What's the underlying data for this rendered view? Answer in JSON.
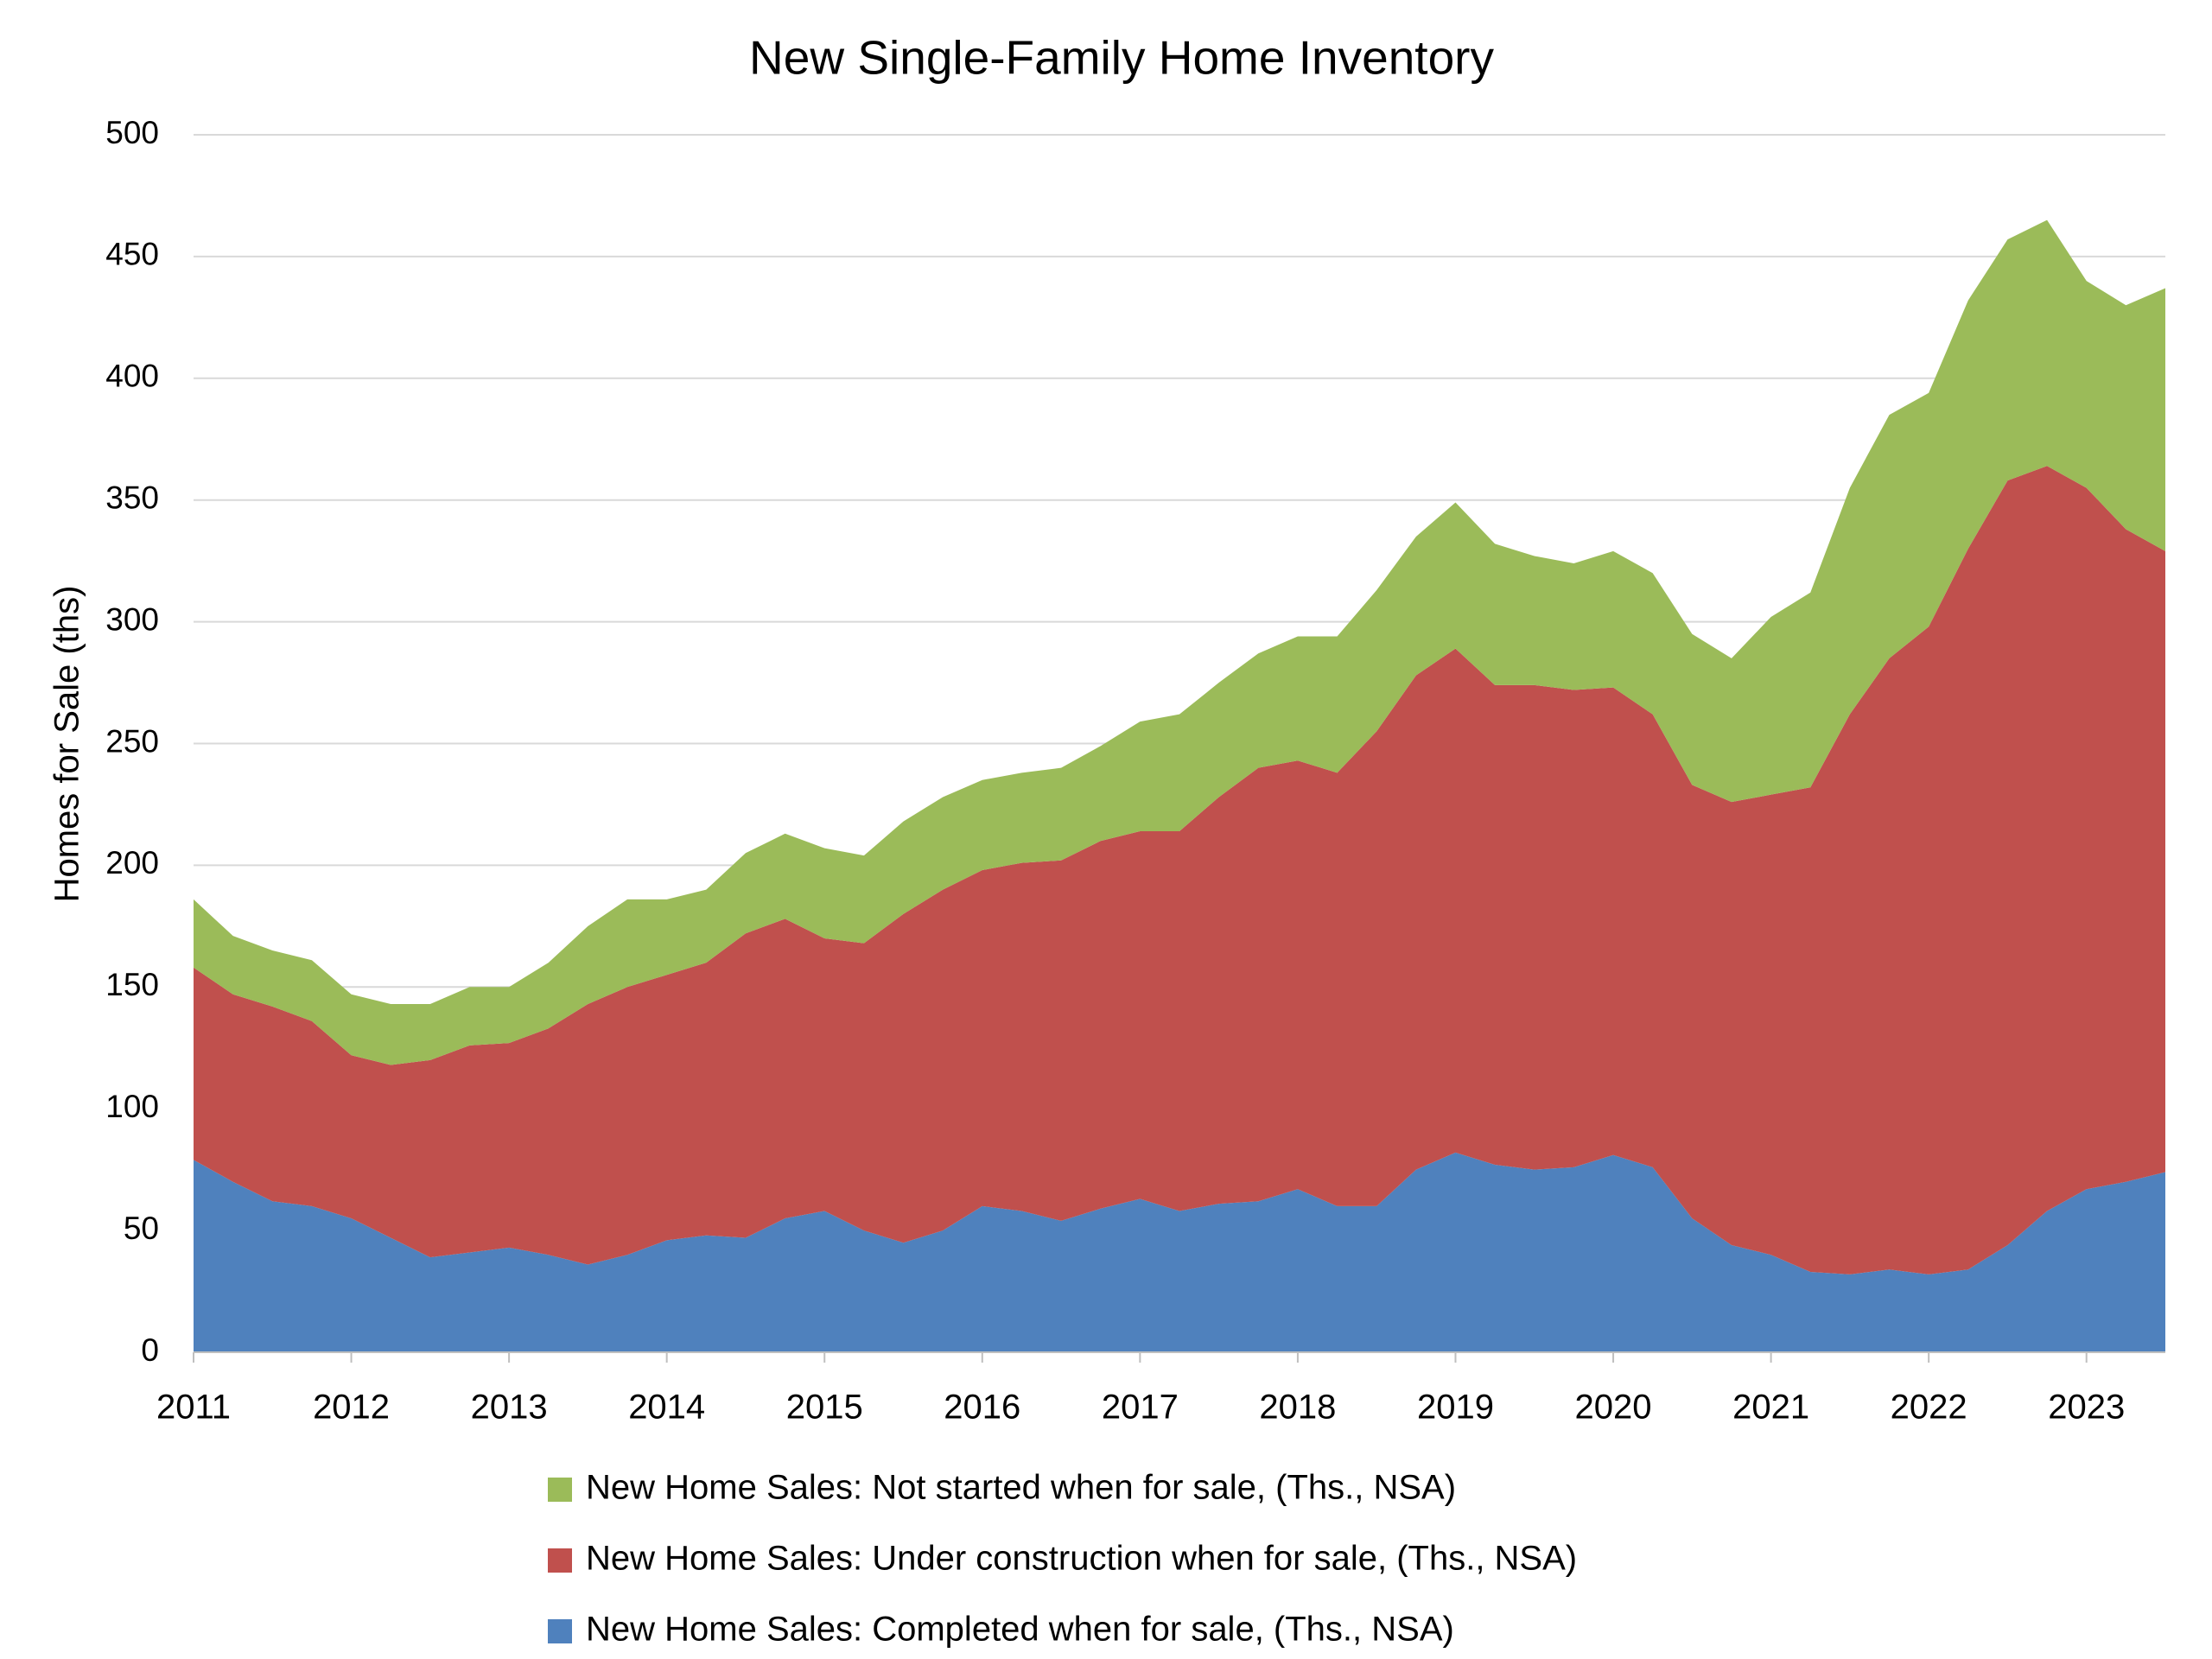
{
  "chart_data": {
    "type": "stacked_area",
    "title": "New Single-Family Home Inventory",
    "y_label": "Homes for Sale (ths)",
    "x": [
      2011,
      2011.25,
      2011.5,
      2011.75,
      2012,
      2012.25,
      2012.5,
      2012.75,
      2013,
      2013.25,
      2013.5,
      2013.75,
      2014,
      2014.25,
      2014.5,
      2014.75,
      2015,
      2015.25,
      2015.5,
      2015.75,
      2016,
      2016.25,
      2016.5,
      2016.75,
      2017,
      2017.25,
      2017.5,
      2017.75,
      2018,
      2018.25,
      2018.5,
      2018.75,
      2019,
      2019.25,
      2019.5,
      2019.75,
      2020,
      2020.25,
      2020.5,
      2020.75,
      2021,
      2021.25,
      2021.5,
      2021.75,
      2022,
      2022.25,
      2022.5,
      2022.75,
      2023,
      2023.25,
      2023.5
    ],
    "series": [
      {
        "name": "New Home Sales: Completed when for sale, (Ths., NSA)",
        "color": "#4f81bd",
        "values": [
          79,
          70,
          62,
          60,
          55,
          47,
          39,
          41,
          43,
          40,
          36,
          40,
          46,
          48,
          47,
          55,
          58,
          50,
          45,
          50,
          60,
          58,
          54,
          59,
          63,
          58,
          61,
          62,
          67,
          60,
          60,
          75,
          82,
          77,
          75,
          76,
          81,
          76,
          55,
          44,
          40,
          33,
          32,
          34,
          32,
          34,
          44,
          58,
          67,
          70,
          74
        ]
      },
      {
        "name": "New Home Sales: Under construction when for sale, (Ths., NSA)",
        "color": "#c0504d",
        "values": [
          79,
          77,
          80,
          76,
          67,
          71,
          81,
          85,
          84,
          93,
          107,
          110,
          109,
          112,
          125,
          123,
          112,
          118,
          135,
          140,
          138,
          143,
          148,
          151,
          151,
          156,
          167,
          178,
          176,
          178,
          195,
          203,
          207,
          197,
          199,
          196,
          192,
          186,
          178,
          182,
          189,
          199,
          230,
          251,
          266,
          296,
          314,
          306,
          288,
          268,
          255
        ]
      },
      {
        "name": "New Home Sales: Not started when for sale, (Ths., NSA)",
        "color": "#9bbb59",
        "values": [
          28,
          24,
          23,
          25,
          25,
          25,
          23,
          24,
          23,
          27,
          32,
          36,
          31,
          30,
          33,
          35,
          37,
          36,
          38,
          38,
          37,
          37,
          38,
          39,
          45,
          48,
          47,
          47,
          51,
          56,
          58,
          57,
          60,
          58,
          53,
          52,
          56,
          58,
          62,
          59,
          73,
          80,
          93,
          100,
          96,
          102,
          99,
          101,
          85,
          92,
          108
        ]
      }
    ],
    "xlim": [
      2011,
      2023.5
    ],
    "xticks": [
      2011,
      2012,
      2013,
      2014,
      2015,
      2016,
      2017,
      2018,
      2019,
      2020,
      2021,
      2022,
      2023
    ],
    "ylim": [
      0,
      500
    ],
    "yticks": [
      0,
      50,
      100,
      150,
      200,
      250,
      300,
      350,
      400,
      450,
      500
    ],
    "grid": true
  }
}
